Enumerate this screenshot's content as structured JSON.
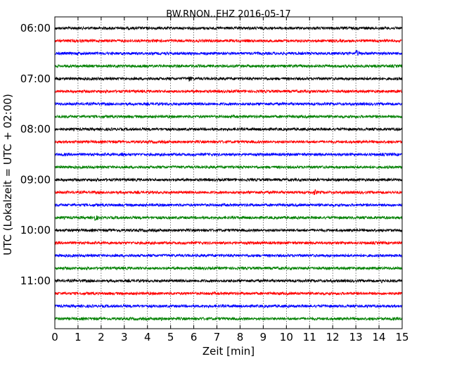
{
  "chart_data": {
    "type": "line",
    "title": "BW.RNON..EHZ 2016-05-17",
    "xlabel": "Zeit  [min]",
    "ylabel": "UTC (Lokalzeit = UTC + 02:00)",
    "xlim": [
      0,
      15
    ],
    "x_ticks": [
      "0",
      "1",
      "2",
      "3",
      "4",
      "5",
      "6",
      "7",
      "8",
      "9",
      "10",
      "11",
      "12",
      "13",
      "14",
      "15"
    ],
    "y_ticks": [
      {
        "label": "06:00",
        "trace": 0
      },
      {
        "label": "07:00",
        "trace": 4
      },
      {
        "label": "08:00",
        "trace": 8
      },
      {
        "label": "09:00",
        "trace": 12
      },
      {
        "label": "10:00",
        "trace": 16
      },
      {
        "label": "11:00",
        "trace": 20
      }
    ],
    "grid": "vertical dotted at each minute",
    "trace_minutes": 15,
    "trace_colors": [
      "#000000",
      "#ff0000",
      "#0000ff",
      "#008000"
    ],
    "traces": [
      {
        "color": "#000000",
        "events": []
      },
      {
        "color": "#ff0000",
        "events": []
      },
      {
        "color": "#0000ff",
        "events": [
          {
            "t": 13.0,
            "amp": 6
          }
        ]
      },
      {
        "color": "#008000",
        "events": []
      },
      {
        "color": "#000000",
        "events": [
          {
            "t": 5.8,
            "amp": 5
          }
        ]
      },
      {
        "color": "#ff0000",
        "events": []
      },
      {
        "color": "#0000ff",
        "events": []
      },
      {
        "color": "#008000",
        "events": []
      },
      {
        "color": "#000000",
        "events": [
          {
            "t": 14.8,
            "amp": 3
          }
        ]
      },
      {
        "color": "#ff0000",
        "events": []
      },
      {
        "color": "#0000ff",
        "events": [
          {
            "t": 2.9,
            "amp": 5
          }
        ]
      },
      {
        "color": "#008000",
        "events": []
      },
      {
        "color": "#000000",
        "events": []
      },
      {
        "color": "#ff0000",
        "events": [
          {
            "t": 11.2,
            "amp": 5
          }
        ]
      },
      {
        "color": "#0000ff",
        "events": [
          {
            "t": 9.7,
            "amp": 3
          }
        ]
      },
      {
        "color": "#008000",
        "events": [
          {
            "t": 1.7,
            "amp": 6
          }
        ]
      },
      {
        "color": "#000000",
        "events": [
          {
            "t": 2.8,
            "amp": 3
          }
        ]
      },
      {
        "color": "#ff0000",
        "events": []
      },
      {
        "color": "#0000ff",
        "events": []
      },
      {
        "color": "#008000",
        "events": []
      },
      {
        "color": "#000000",
        "events": [
          {
            "t": 14.1,
            "amp": 4
          },
          {
            "t": 11.9,
            "amp": 3
          }
        ]
      },
      {
        "color": "#ff0000",
        "events": []
      },
      {
        "color": "#0000ff",
        "events": [
          {
            "t": 13.5,
            "amp": 3
          }
        ]
      },
      {
        "color": "#008000",
        "events": [
          {
            "t": 4.6,
            "amp": 4
          }
        ]
      }
    ]
  }
}
